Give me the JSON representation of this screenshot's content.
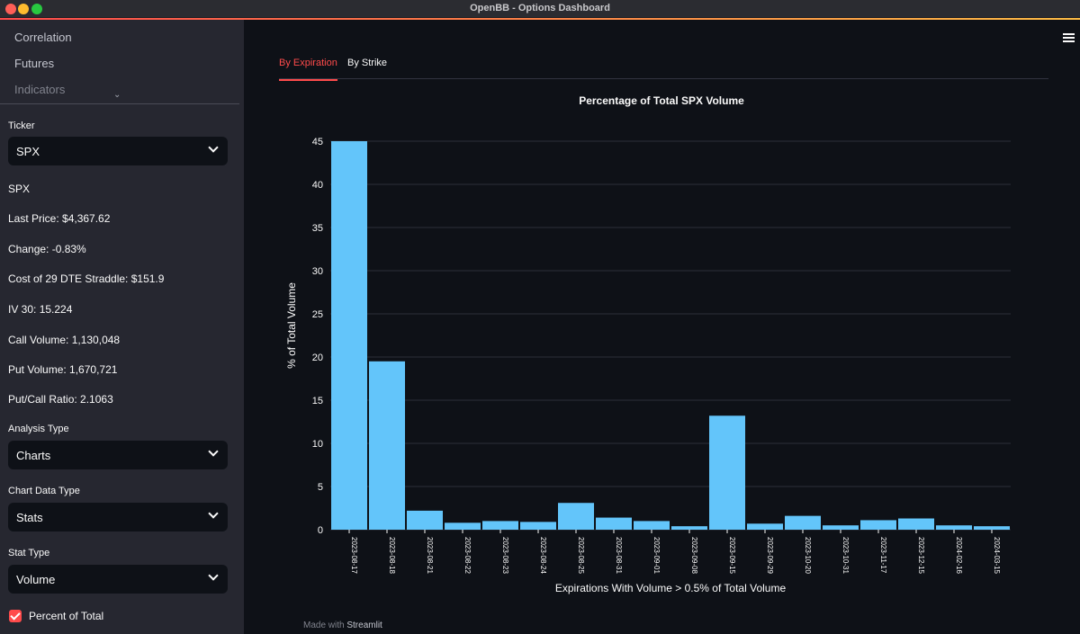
{
  "window": {
    "title": "OpenBB - Options Dashboard"
  },
  "sidebar": {
    "nav_items": [
      "Correlation",
      "Futures",
      "Indicators"
    ],
    "ticker_label": "Ticker",
    "ticker_value": "SPX",
    "stats": {
      "symbol": "SPX",
      "last_price": "Last Price: $4,367.62",
      "change": "Change: -0.83%",
      "straddle": "Cost of 29 DTE Straddle: $151.9",
      "iv30": "IV 30: 15.224",
      "call_volume": "Call Volume: 1,130,048",
      "put_volume": "Put Volume: 1,670,721",
      "pc_ratio": "Put/Call Ratio: 2.1063"
    },
    "analysis_label": "Analysis Type",
    "analysis_value": "Charts",
    "chart_data_label": "Chart Data Type",
    "chart_data_value": "Stats",
    "stat_type_label": "Stat Type",
    "stat_type_value": "Volume",
    "percent_checkbox_label": "Percent of Total",
    "percent_checked": true
  },
  "main": {
    "tabs": [
      {
        "label": "By Expiration",
        "active": true
      },
      {
        "label": "By Strike",
        "active": false
      }
    ],
    "footer_prefix": "Made with",
    "footer_brand": "Streamlit"
  },
  "colors": {
    "bar": "#63c5fa",
    "accent": "#ff4b4b",
    "grid": "#2c2f38"
  },
  "chart_data": {
    "type": "bar",
    "title": "Percentage of Total SPX Volume",
    "xlabel": "Expirations With Volume  > 0.5% of Total Volume",
    "ylabel": "% of Total Volume",
    "ylim": [
      0,
      45
    ],
    "yticks": [
      0,
      5,
      10,
      15,
      20,
      25,
      30,
      35,
      40,
      45
    ],
    "grid": true,
    "categories": [
      "2023-08-17",
      "2023-08-18",
      "2023-08-21",
      "2023-08-22",
      "2023-08-23",
      "2023-08-24",
      "2023-08-25",
      "2023-08-31",
      "2023-09-01",
      "2023-09-08",
      "2023-09-15",
      "2023-09-29",
      "2023-10-20",
      "2023-10-31",
      "2023-11-17",
      "2023-12-15",
      "2024-02-16",
      "2024-03-15"
    ],
    "values": [
      45,
      19.5,
      2.2,
      0.8,
      1.0,
      0.9,
      3.1,
      1.4,
      1.0,
      0.4,
      13.2,
      0.7,
      1.6,
      0.5,
      1.1,
      1.3,
      0.5,
      0.4
    ]
  }
}
